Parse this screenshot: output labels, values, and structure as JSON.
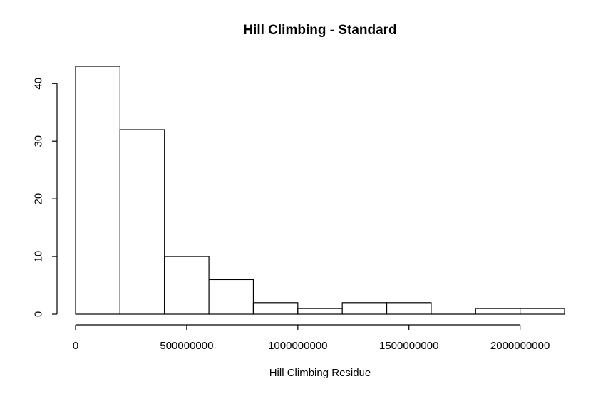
{
  "chart_data": {
    "type": "bar",
    "title": "Hill Climbing - Standard",
    "xlabel": "Hill Climbing Residue",
    "ylabel": "",
    "bins": [
      {
        "start": 0,
        "end": 200000000,
        "count": 43
      },
      {
        "start": 200000000,
        "end": 400000000,
        "count": 32
      },
      {
        "start": 400000000,
        "end": 600000000,
        "count": 10
      },
      {
        "start": 600000000,
        "end": 800000000,
        "count": 6
      },
      {
        "start": 800000000,
        "end": 1000000000,
        "count": 2
      },
      {
        "start": 1000000000,
        "end": 1200000000,
        "count": 1
      },
      {
        "start": 1200000000,
        "end": 1400000000,
        "count": 2
      },
      {
        "start": 1400000000,
        "end": 1600000000,
        "count": 2
      },
      {
        "start": 1600000000,
        "end": 1800000000,
        "count": 0
      },
      {
        "start": 1800000000,
        "end": 2000000000,
        "count": 1
      },
      {
        "start": 2000000000,
        "end": 2200000000,
        "count": 1
      }
    ],
    "xlim": [
      0,
      2200000000
    ],
    "ylim": [
      0,
      43
    ],
    "x_ticks": [
      0,
      500000000,
      1000000000,
      1500000000,
      2000000000
    ],
    "x_tick_labels": [
      "0",
      "500000000",
      "1000000000",
      "1500000000",
      "2000000000"
    ],
    "y_ticks": [
      0,
      10,
      20,
      30,
      40
    ],
    "y_tick_labels": [
      "0",
      "10",
      "20",
      "30",
      "40"
    ],
    "grid": false,
    "legend": "none"
  }
}
